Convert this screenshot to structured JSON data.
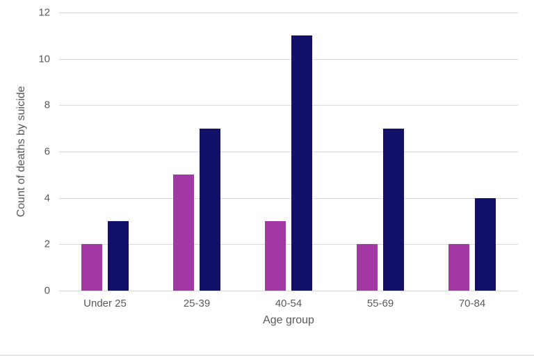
{
  "chart_data": {
    "type": "bar",
    "title": "",
    "xlabel": "Age group",
    "ylabel": "Count of deaths by suicide",
    "categories": [
      "Under 25",
      "25-39",
      "40-54",
      "55-69",
      "70-84"
    ],
    "series": [
      {
        "id": "purple-series",
        "color": "#a238a3",
        "values": [
          2,
          5,
          3,
          2,
          2
        ]
      },
      {
        "id": "navy-series",
        "color": "#13106a",
        "values": [
          3,
          7,
          11,
          7,
          4
        ]
      }
    ],
    "ylim": [
      0,
      12
    ],
    "yticks": [
      0,
      2,
      4,
      6,
      8,
      10,
      12
    ],
    "grid": true,
    "legend_position": "none",
    "gridline_color": "#d9d9d9",
    "label_color": "#595959",
    "background_color": "#ffffff"
  }
}
